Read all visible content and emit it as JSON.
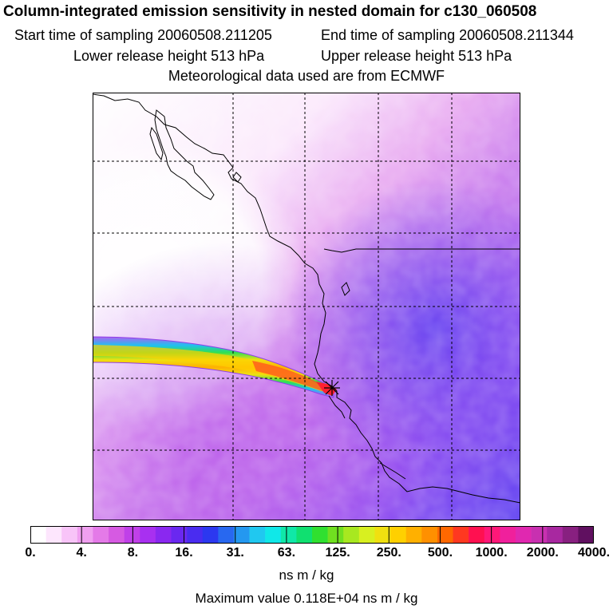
{
  "header": {
    "title": "Column-integrated emission sensitivity in nested domain for c130_060508",
    "start_label": "Start time of sampling 20060508.211205",
    "end_label": "End time of sampling 20060508.211344",
    "lower_label": "Lower release height  513 hPa",
    "upper_label": "Upper release height  513 hPa",
    "met_label": "Meteorological data used are from ECMWF"
  },
  "colorbar": {
    "tick_labels": [
      "0.",
      "4.",
      "8.",
      "16.",
      "31.",
      "63.",
      "125.",
      "250.",
      "500.",
      "1000.",
      "2000.",
      "4000."
    ],
    "colors": [
      "#ffffff",
      "#fde6fd",
      "#f8c4f8",
      "#f0a0f0",
      "#e47ae8",
      "#d65ae2",
      "#c040e8",
      "#a830f0",
      "#8a28f0",
      "#6a28f0",
      "#4a2cf0",
      "#2c38f0",
      "#2868f0",
      "#2498f0",
      "#20c8f0",
      "#10e8e8",
      "#10e8a8",
      "#10e070",
      "#30e030",
      "#70e020",
      "#a8e820",
      "#d8f020",
      "#f0e010",
      "#ffd000",
      "#ffb000",
      "#ff9000",
      "#ff6800",
      "#ff3820",
      "#ff1050",
      "#ff1878",
      "#f0209c",
      "#e028b0",
      "#c830b0",
      "#a828a0",
      "#882080",
      "#601060"
    ],
    "unit": "ns m / kg"
  },
  "footer": {
    "max_value": "Maximum value  0.118E+04 ns m / kg"
  },
  "map": {
    "plume_color_core": "#ff3020",
    "background_colors": [
      "#ffffff",
      "#f0c0f4",
      "#d88aee",
      "#b860e8",
      "#8c40f0",
      "#6a3af0"
    ]
  }
}
